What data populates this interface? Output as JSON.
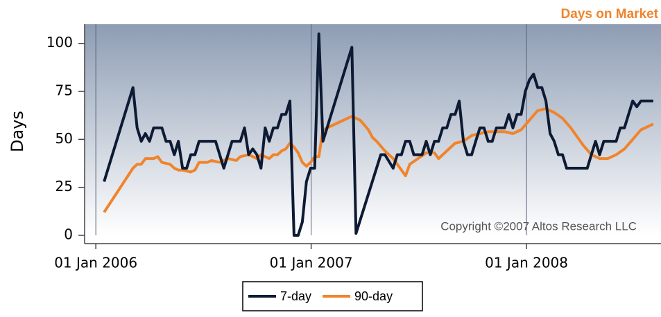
{
  "chart_data": {
    "type": "line",
    "title": "Days on Market",
    "y_label": "Days",
    "annotation": "Copyright ©2007 Altos Research LLC",
    "xlim": [
      "2005-12-13",
      "2008-08-16"
    ],
    "xticks": [
      {
        "value": "2006-01-01",
        "label": "01 Jan 2006"
      },
      {
        "value": "2007-01-01",
        "label": "01 Jan 2007"
      },
      {
        "value": "2008-01-01",
        "label": "01 Jan 2008"
      }
    ],
    "ylim": [
      0,
      110
    ],
    "yticks": [
      0,
      25,
      50,
      75,
      100
    ],
    "grid": true,
    "legend": "bottom",
    "series": [
      {
        "name": "7-day",
        "color": "#0d1a33",
        "x": [
          "2006-01-15",
          "2006-03-05",
          "2006-03-12",
          "2006-03-19",
          "2006-03-26",
          "2006-04-02",
          "2006-04-09",
          "2006-04-23",
          "2006-04-30",
          "2006-05-07",
          "2006-05-14",
          "2006-05-21",
          "2006-05-28",
          "2006-06-04",
          "2006-06-11",
          "2006-06-18",
          "2006-06-25",
          "2006-07-23",
          "2006-08-06",
          "2006-08-20",
          "2006-09-03",
          "2006-09-10",
          "2006-09-17",
          "2006-09-24",
          "2006-10-01",
          "2006-10-08",
          "2006-10-15",
          "2006-10-22",
          "2006-10-29",
          "2006-11-05",
          "2006-11-12",
          "2006-11-19",
          "2006-11-26",
          "2006-12-03",
          "2006-12-10",
          "2006-12-17",
          "2006-12-24",
          "2006-12-31",
          "2007-01-07",
          "2007-01-14",
          "2007-01-21",
          "2007-03-11",
          "2007-03-18",
          "2007-04-29",
          "2007-05-06",
          "2007-05-20",
          "2007-05-27",
          "2007-06-03",
          "2007-06-10",
          "2007-06-17",
          "2007-06-24",
          "2007-07-08",
          "2007-07-15",
          "2007-07-22",
          "2007-07-29",
          "2007-08-05",
          "2007-08-12",
          "2007-08-19",
          "2007-08-26",
          "2007-09-02",
          "2007-09-09",
          "2007-09-16",
          "2007-09-23",
          "2007-09-30",
          "2007-10-07",
          "2007-10-14",
          "2007-10-21",
          "2007-10-28",
          "2007-11-04",
          "2007-11-11",
          "2007-11-25",
          "2007-12-02",
          "2007-12-09",
          "2007-12-16",
          "2007-12-23",
          "2007-12-30",
          "2008-01-06",
          "2008-01-13",
          "2008-01-20",
          "2008-01-27",
          "2008-02-03",
          "2008-02-10",
          "2008-02-17",
          "2008-02-24",
          "2008-03-02",
          "2008-03-09",
          "2008-04-13",
          "2008-04-20",
          "2008-04-27",
          "2008-05-04",
          "2008-05-11",
          "2008-06-01",
          "2008-06-08",
          "2008-06-15",
          "2008-06-22",
          "2008-06-29",
          "2008-07-06",
          "2008-07-13",
          "2008-08-03"
        ],
        "values": [
          28,
          77,
          56,
          49,
          53,
          49,
          56,
          56,
          49,
          49,
          42,
          49,
          35,
          35,
          42,
          42,
          49,
          49,
          35,
          49,
          49,
          56,
          42,
          45,
          42,
          35,
          56,
          49,
          56,
          56,
          63,
          63,
          70,
          0,
          0,
          7,
          28,
          35,
          35,
          105,
          49,
          98,
          1,
          42,
          42,
          35,
          42,
          42,
          49,
          49,
          42,
          42,
          49,
          42,
          49,
          49,
          56,
          56,
          63,
          63,
          70,
          49,
          42,
          42,
          49,
          56,
          56,
          49,
          49,
          56,
          56,
          63,
          56,
          63,
          63,
          75,
          81,
          84,
          77,
          77,
          70,
          53,
          49,
          42,
          42,
          35,
          35,
          42,
          49,
          42,
          49,
          49,
          56,
          56,
          63,
          70,
          67,
          70,
          70
        ]
      },
      {
        "name": "90-day",
        "color": "#f0842c",
        "x": [
          "2006-01-15",
          "2006-03-05",
          "2006-03-12",
          "2006-03-19",
          "2006-03-26",
          "2006-04-09",
          "2006-04-16",
          "2006-04-23",
          "2006-05-07",
          "2006-05-14",
          "2006-05-21",
          "2006-05-28",
          "2006-06-11",
          "2006-06-18",
          "2006-06-25",
          "2006-07-09",
          "2006-07-16",
          "2006-07-30",
          "2006-08-13",
          "2006-08-27",
          "2006-09-03",
          "2006-09-17",
          "2006-10-01",
          "2006-10-08",
          "2006-10-15",
          "2006-10-22",
          "2006-10-29",
          "2006-11-05",
          "2006-11-12",
          "2006-11-19",
          "2006-11-26",
          "2006-12-03",
          "2006-12-10",
          "2006-12-17",
          "2006-12-24",
          "2006-12-31",
          "2007-01-07",
          "2007-01-14",
          "2007-01-21",
          "2007-01-28",
          "2007-02-04",
          "2007-02-11",
          "2007-02-25",
          "2007-03-11",
          "2007-03-25",
          "2007-04-08",
          "2007-04-15",
          "2007-04-22",
          "2007-05-06",
          "2007-05-20",
          "2007-06-03",
          "2007-06-10",
          "2007-06-17",
          "2007-07-01",
          "2007-07-15",
          "2007-07-29",
          "2007-08-05",
          "2007-08-19",
          "2007-09-02",
          "2007-09-16",
          "2007-09-30",
          "2007-10-14",
          "2007-10-28",
          "2007-11-11",
          "2007-11-25",
          "2007-12-09",
          "2007-12-23",
          "2008-01-06",
          "2008-01-20",
          "2008-02-03",
          "2008-02-17",
          "2008-03-02",
          "2008-03-16",
          "2008-03-30",
          "2008-04-06",
          "2008-04-20",
          "2008-05-04",
          "2008-05-18",
          "2008-06-01",
          "2008-06-15",
          "2008-06-29",
          "2008-07-13",
          "2008-08-03"
        ],
        "values": [
          12,
          35,
          37,
          37,
          40,
          40,
          41,
          38,
          37,
          35,
          34,
          34,
          33,
          34,
          38,
          38,
          39,
          38,
          40,
          39,
          41,
          42,
          40,
          42,
          41,
          40,
          42,
          42,
          44,
          45,
          48,
          46,
          43,
          38,
          36,
          38,
          41,
          41,
          55,
          56,
          57,
          58,
          60,
          62,
          60,
          55,
          51,
          49,
          44,
          40,
          34,
          31,
          37,
          40,
          43,
          43,
          40,
          44,
          48,
          49,
          52,
          53,
          54,
          54,
          54,
          53,
          55,
          60,
          65,
          66,
          64,
          61,
          56,
          50,
          47,
          42,
          40,
          40,
          42,
          45,
          50,
          55,
          58
        ]
      }
    ]
  }
}
